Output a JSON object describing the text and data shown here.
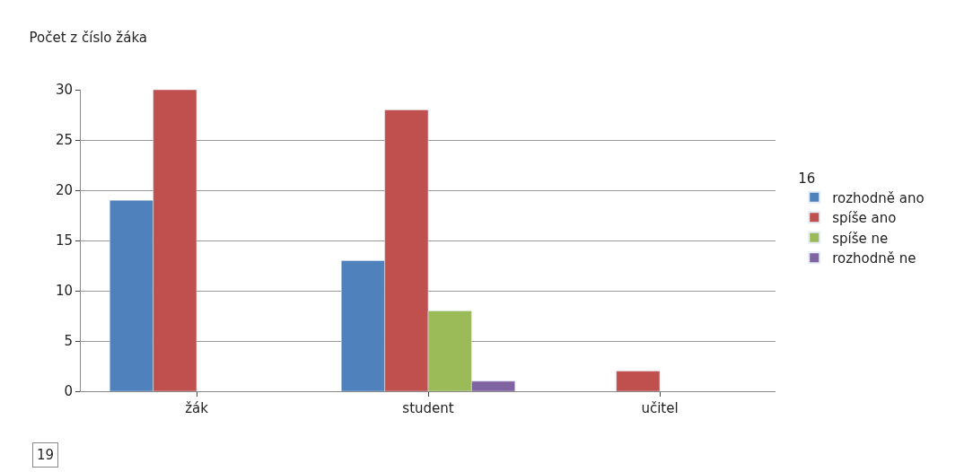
{
  "chart_data": {
    "type": "bar",
    "title": "Počet z číslo žáka",
    "legend_title": "16",
    "annotations": [
      "19"
    ],
    "categories": [
      "žák",
      "student",
      "učitel"
    ],
    "series": [
      {
        "name": "rozhodně ano",
        "color": "#4f81bd",
        "values": [
          19,
          13,
          null
        ]
      },
      {
        "name": "spíše ano",
        "color": "#c0504d",
        "values": [
          30,
          28,
          2
        ]
      },
      {
        "name": "spíše ne",
        "color": "#9bbb59",
        "values": [
          null,
          8,
          null
        ]
      },
      {
        "name": "rozhodně ne",
        "color": "#8064a2",
        "values": [
          null,
          1,
          null
        ]
      }
    ],
    "ylim": [
      0,
      30
    ],
    "yticks": [
      0,
      5,
      10,
      15,
      20,
      25,
      30
    ],
    "grid": "y",
    "legend": "right"
  }
}
